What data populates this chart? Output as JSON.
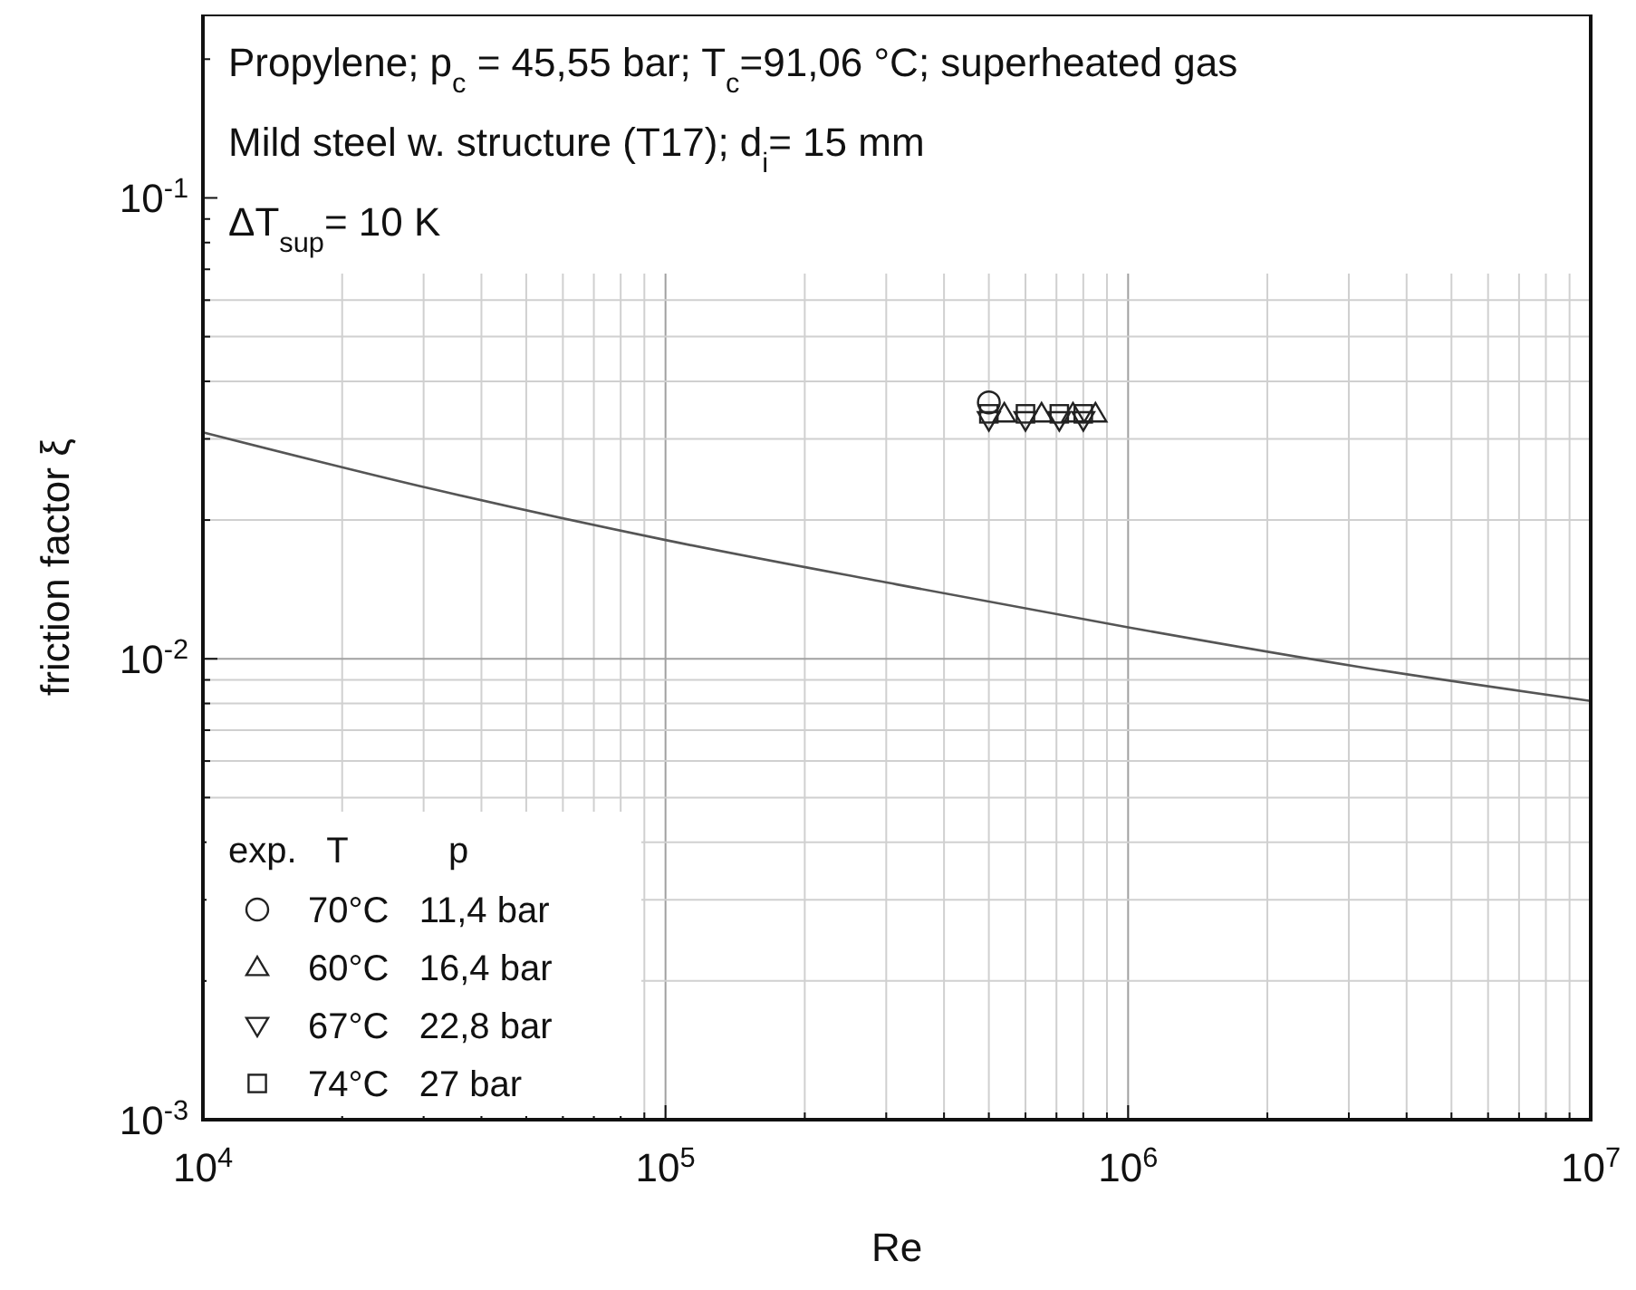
{
  "chart_data": {
    "type": "scatter",
    "xlabel": "Re",
    "ylabel": "friction factor ξ",
    "annotations": [
      "Propylene; p$_{c}$ = 45,55 bar; T$_{c}$=91,06 °C; superheated gas",
      "Mild steel w. structure (T17); d$_{i}$= 15 mm",
      "ΔT$_{sup}$= 10 K"
    ],
    "legend_title": "exp.   T          p",
    "log": "xy",
    "grid": true,
    "legend": "bottom left",
    "xlim": [
      10000,
      10000000
    ],
    "xticks": [
      {
        "value": 10000,
        "label": "10$^{4}$"
      },
      {
        "value": 20000,
        "label": null
      },
      {
        "value": 30000,
        "label": null
      },
      {
        "value": 40000,
        "label": null
      },
      {
        "value": 50000,
        "label": null
      },
      {
        "value": 60000,
        "label": null
      },
      {
        "value": 70000,
        "label": null
      },
      {
        "value": 80000,
        "label": null
      },
      {
        "value": 90000,
        "label": null
      },
      {
        "value": 100000,
        "label": "10$^{5}$"
      },
      {
        "value": 200000,
        "label": null
      },
      {
        "value": 300000,
        "label": null
      },
      {
        "value": 400000,
        "label": null
      },
      {
        "value": 500000,
        "label": null
      },
      {
        "value": 600000,
        "label": null
      },
      {
        "value": 700000,
        "label": null
      },
      {
        "value": 800000,
        "label": null
      },
      {
        "value": 900000,
        "label": null
      },
      {
        "value": 1000000,
        "label": "10$^{6}$"
      },
      {
        "value": 2000000,
        "label": null
      },
      {
        "value": 3000000,
        "label": null
      },
      {
        "value": 4000000,
        "label": null
      },
      {
        "value": 5000000,
        "label": null
      },
      {
        "value": 6000000,
        "label": null
      },
      {
        "value": 7000000,
        "label": null
      },
      {
        "value": 8000000,
        "label": null
      },
      {
        "value": 9000000,
        "label": null
      },
      {
        "value": 10000000,
        "label": "10$^{7}$"
      }
    ],
    "ylim": [
      0.001,
      0.25
    ],
    "yticks": [
      {
        "value": 0.001,
        "label": "10$^{-3}$"
      },
      {
        "value": 0.002,
        "label": null
      },
      {
        "value": 0.003,
        "label": null
      },
      {
        "value": 0.004,
        "label": null
      },
      {
        "value": 0.005,
        "label": null
      },
      {
        "value": 0.006,
        "label": null
      },
      {
        "value": 0.007,
        "label": null
      },
      {
        "value": 0.008,
        "label": null
      },
      {
        "value": 0.009,
        "label": null
      },
      {
        "value": 0.01,
        "label": "10$^{-2}$"
      },
      {
        "value": 0.02,
        "label": null
      },
      {
        "value": 0.03,
        "label": null
      },
      {
        "value": 0.04,
        "label": null
      },
      {
        "value": 0.05,
        "label": null
      },
      {
        "value": 0.06,
        "label": null
      },
      {
        "value": 0.07,
        "label": null
      },
      {
        "value": 0.08,
        "label": null
      },
      {
        "value": 0.09,
        "label": null
      },
      {
        "value": 0.1,
        "label": "10$^{-1}$"
      },
      {
        "value": 0.2,
        "label": null
      }
    ],
    "series": [
      {
        "type": "line",
        "color": "#555555",
        "line_style": "solid",
        "x": [
          10000,
          31623,
          100000,
          316228,
          1000000,
          3162278,
          10000000
        ],
        "values": [
          0.031,
          0.0233,
          0.0181,
          0.0145,
          0.0117,
          0.0096,
          0.0081
        ]
      },
      {
        "name": "70°C   11,4 bar",
        "color": "#222222",
        "marker": "circle",
        "x": [
          500000
        ],
        "values": [
          0.036
        ]
      },
      {
        "name": "60°C   16,4 bar",
        "color": "#222222",
        "marker": "triangle",
        "x": [
          540000,
          650000,
          760000,
          850000
        ],
        "values": [
          0.034,
          0.034,
          0.034,
          0.034
        ]
      },
      {
        "name": "67°C   22,8 bar",
        "color": "#222222",
        "marker": "triangle-down",
        "x": [
          500000,
          600000,
          710000,
          800000
        ],
        "values": [
          0.033,
          0.033,
          0.033,
          0.033
        ]
      },
      {
        "name": "74°C   27 bar",
        "color": "#222222",
        "marker": "square",
        "x": [
          500000,
          600000,
          710000,
          800000
        ],
        "values": [
          0.034,
          0.034,
          0.034,
          0.034
        ]
      }
    ]
  }
}
